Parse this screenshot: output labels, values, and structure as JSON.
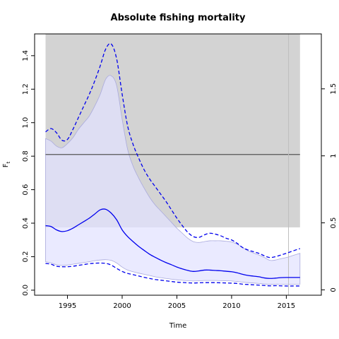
{
  "chart_data": {
    "type": "line",
    "title": "Absolute fishing mortality",
    "xlabel": "Time",
    "ylabel": "F",
    "ylabel_sub": "t",
    "xlim": [
      1992.0,
      2018.2
    ],
    "ylim": [
      -0.03,
      1.53
    ],
    "y2lim": [
      -0.04,
      1.91
    ],
    "x_ticks": [
      1995,
      2000,
      2005,
      2010,
      2015
    ],
    "y_ticks": [
      0.0,
      0.2,
      0.4,
      0.6,
      0.8,
      1.0,
      1.2,
      1.4
    ],
    "y2_ticks": [
      0,
      0.5,
      1,
      1.5
    ],
    "background_region": {
      "x_range": [
        1993.0,
        2016.25
      ],
      "y_range": [
        0.375,
        1.53
      ],
      "color": "#d3d3d3"
    },
    "reference_line": {
      "y": 0.81,
      "color": "#555555"
    },
    "vertical_line": {
      "x": 2015.2,
      "color": "#bfbfbf"
    },
    "colors": {
      "estimate": "#0000ee",
      "ci_fill": "#e2e2ff",
      "ci_outline": "#aaaadd"
    },
    "x": [
      1993.0,
      1993.5,
      1994.0,
      1994.5,
      1995.0,
      1995.5,
      1996.0,
      1996.5,
      1997.0,
      1997.5,
      1998.0,
      1998.5,
      1999.0,
      1999.5,
      2000.0,
      2000.5,
      2001.0,
      2001.5,
      2002.0,
      2002.5,
      2003.0,
      2003.5,
      2004.0,
      2004.5,
      2005.0,
      2005.5,
      2006.0,
      2006.5,
      2007.0,
      2007.5,
      2008.0,
      2008.5,
      2009.0,
      2009.5,
      2010.0,
      2010.5,
      2011.0,
      2011.5,
      2012.0,
      2012.5,
      2013.0,
      2013.5,
      2014.0,
      2014.5,
      2015.0,
      2015.5,
      2016.0,
      2016.25
    ],
    "series": [
      {
        "name": "",
        "style": "solid",
        "values": [
          0.385,
          0.38,
          0.36,
          0.35,
          0.355,
          0.37,
          0.39,
          0.41,
          0.43,
          0.455,
          0.48,
          0.483,
          0.46,
          0.42,
          0.36,
          0.32,
          0.29,
          0.262,
          0.238,
          0.215,
          0.197,
          0.18,
          0.165,
          0.152,
          0.138,
          0.127,
          0.118,
          0.112,
          0.115,
          0.12,
          0.12,
          0.118,
          0.116,
          0.113,
          0.11,
          0.104,
          0.095,
          0.088,
          0.084,
          0.08,
          0.073,
          0.07,
          0.072,
          0.075,
          0.076,
          0.076,
          0.076,
          0.076
        ]
      },
      {
        "name": "",
        "style": "dashed",
        "values": [
          0.945,
          0.965,
          0.94,
          0.895,
          0.9,
          0.96,
          1.03,
          1.1,
          1.17,
          1.25,
          1.34,
          1.44,
          1.47,
          1.38,
          1.17,
          0.98,
          0.87,
          0.79,
          0.72,
          0.665,
          0.62,
          0.575,
          0.53,
          0.48,
          0.43,
          0.385,
          0.345,
          0.32,
          0.315,
          0.33,
          0.34,
          0.335,
          0.325,
          0.31,
          0.3,
          0.28,
          0.255,
          0.24,
          0.23,
          0.22,
          0.205,
          0.195,
          0.2,
          0.21,
          0.22,
          0.232,
          0.243,
          0.248
        ]
      },
      {
        "name": "",
        "style": "dashed",
        "values": [
          0.16,
          0.155,
          0.143,
          0.14,
          0.14,
          0.143,
          0.148,
          0.153,
          0.158,
          0.161,
          0.162,
          0.16,
          0.15,
          0.13,
          0.112,
          0.1,
          0.093,
          0.085,
          0.077,
          0.07,
          0.064,
          0.06,
          0.056,
          0.052,
          0.048,
          0.046,
          0.044,
          0.043,
          0.044,
          0.045,
          0.045,
          0.045,
          0.044,
          0.043,
          0.042,
          0.04,
          0.036,
          0.034,
          0.032,
          0.03,
          0.028,
          0.026,
          0.027,
          0.026,
          0.025,
          0.025,
          0.025,
          0.025
        ]
      },
      {
        "name": "",
        "style": "band-upper",
        "values": [
          0.905,
          0.89,
          0.86,
          0.85,
          0.875,
          0.91,
          0.96,
          1.0,
          1.04,
          1.1,
          1.17,
          1.26,
          1.28,
          1.22,
          1.02,
          0.84,
          0.74,
          0.67,
          0.61,
          0.555,
          0.51,
          0.475,
          0.44,
          0.405,
          0.37,
          0.34,
          0.31,
          0.29,
          0.285,
          0.29,
          0.295,
          0.295,
          0.295,
          0.292,
          0.288,
          0.275,
          0.255,
          0.235,
          0.222,
          0.21,
          0.195,
          0.178,
          0.18,
          0.188,
          0.195,
          0.205,
          0.215,
          0.22
        ]
      },
      {
        "name": "",
        "style": "band-lower",
        "values": [
          0.17,
          0.163,
          0.152,
          0.148,
          0.15,
          0.155,
          0.16,
          0.165,
          0.17,
          0.176,
          0.18,
          0.182,
          0.178,
          0.162,
          0.138,
          0.12,
          0.11,
          0.102,
          0.095,
          0.088,
          0.08,
          0.075,
          0.07,
          0.066,
          0.062,
          0.059,
          0.056,
          0.055,
          0.056,
          0.058,
          0.058,
          0.058,
          0.057,
          0.056,
          0.055,
          0.052,
          0.048,
          0.045,
          0.043,
          0.04,
          0.037,
          0.035,
          0.036,
          0.036,
          0.036,
          0.036,
          0.036,
          0.036
        ]
      }
    ]
  }
}
